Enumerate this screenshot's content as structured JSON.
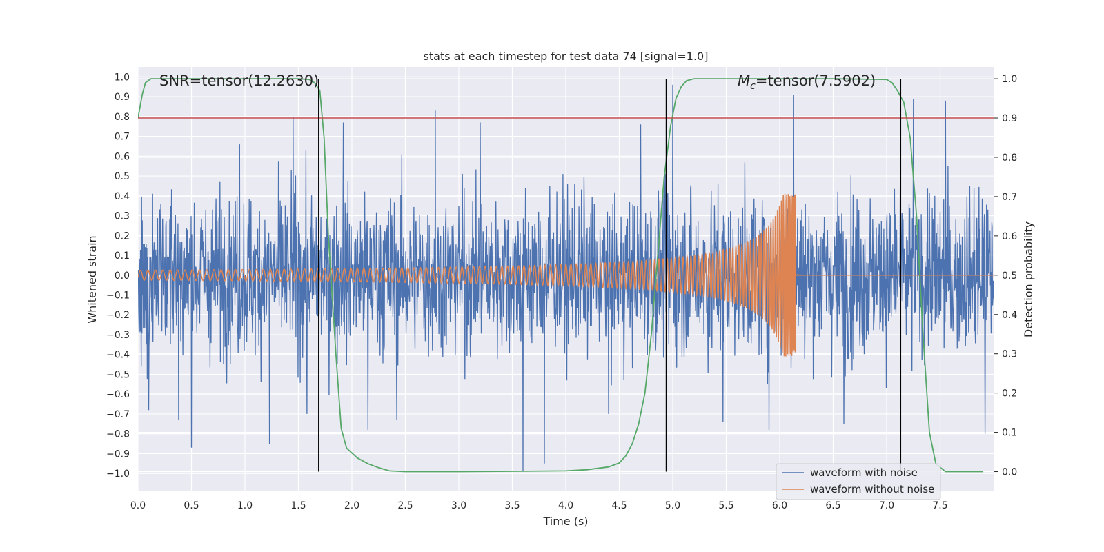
{
  "chart_data": {
    "type": "line",
    "title": "stats at each timestep for test data 74 [signal=1.0]",
    "xlabel": "Time (s)",
    "ylabel_left": "Whitened strain",
    "ylabel_right": "Detection probability",
    "xlim": [
      0.0,
      8.0
    ],
    "ylim_left": [
      -1.09,
      1.05
    ],
    "ylim_right": [
      -0.05,
      1.03
    ],
    "x_ticks": [
      "0.0",
      "0.5",
      "1.0",
      "1.5",
      "2.0",
      "2.5",
      "3.0",
      "3.5",
      "4.0",
      "4.5",
      "5.0",
      "5.5",
      "6.0",
      "6.5",
      "7.0",
      "7.5"
    ],
    "y_ticks_left": [
      "1.0",
      "0.9",
      "0.8",
      "0.7",
      "0.6",
      "0.5",
      "0.4",
      "0.3",
      "0.2",
      "0.1",
      "0.0",
      "-0.1",
      "-0.2",
      "-0.3",
      "-0.4",
      "-0.5",
      "-0.6",
      "-0.7",
      "-0.8",
      "-0.9",
      "-1.0"
    ],
    "y_ticks_right": [
      "1.0",
      "0.9",
      "0.8",
      "0.7",
      "0.6",
      "0.5",
      "0.4",
      "0.3",
      "0.2",
      "0.1",
      "0.0"
    ],
    "annotations": {
      "snr": "SNR=tensor(12.2630)",
      "mc_symbol": "M",
      "mc_sub": "c",
      "mc_value": "=tensor(7.5902)"
    },
    "threshold": {
      "axis": "right",
      "value": 0.9,
      "color": "#c44e52"
    },
    "vertical_lines": [
      1.69,
      4.94,
      7.13
    ],
    "series": [
      {
        "name": "waveform with noise",
        "axis": "left",
        "color": "#4c72b0",
        "kind": "noise",
        "sigma": 0.2,
        "envelope": 0.5,
        "spikes": [
          {
            "t": 0.95,
            "v": 0.66
          },
          {
            "t": 1.45,
            "v": 0.8
          },
          {
            "t": 1.92,
            "v": 0.77
          },
          {
            "t": 2.78,
            "v": 0.83
          },
          {
            "t": 3.2,
            "v": 0.77
          },
          {
            "t": 4.7,
            "v": 0.76
          },
          {
            "t": 5.0,
            "v": 0.96
          },
          {
            "t": 6.13,
            "v": 0.91
          },
          {
            "t": 7.25,
            "v": 0.89
          },
          {
            "t": 7.55,
            "v": 0.88
          },
          {
            "t": 0.5,
            "v": -0.87
          },
          {
            "t": 1.23,
            "v": -0.85
          },
          {
            "t": 2.15,
            "v": -0.78
          },
          {
            "t": 3.6,
            "v": -0.99
          },
          {
            "t": 3.8,
            "v": -0.95
          },
          {
            "t": 2.42,
            "v": -0.73
          },
          {
            "t": 5.9,
            "v": -0.78
          },
          {
            "t": 7.92,
            "v": -0.8
          },
          {
            "t": 0.38,
            "v": -0.73
          },
          {
            "t": 1.58,
            "v": -0.7
          },
          {
            "t": 6.6,
            "v": -0.75
          },
          {
            "t": 4.4,
            "v": -0.7
          },
          {
            "t": 5.47,
            "v": -0.74
          },
          {
            "t": 0.1,
            "v": -0.68
          }
        ]
      },
      {
        "name": "waveform without noise",
        "axis": "left",
        "color": "#dd8452",
        "kind": "chirp",
        "coalescence": 6.15,
        "peak": 0.41,
        "start_amplitude": 0.025
      },
      {
        "name": "detection probability",
        "axis": "right",
        "color": "#55a868",
        "kind": "probability",
        "x": [
          0.0,
          0.04,
          0.07,
          0.12,
          0.2,
          0.5,
          1.0,
          1.5,
          1.6,
          1.65,
          1.7,
          1.74,
          1.78,
          1.85,
          1.9,
          1.95,
          2.05,
          2.15,
          2.25,
          2.35,
          2.5,
          3.0,
          3.5,
          4.0,
          4.2,
          4.4,
          4.5,
          4.56,
          4.62,
          4.68,
          4.74,
          4.8,
          4.86,
          4.92,
          4.98,
          5.03,
          5.08,
          5.13,
          5.2,
          5.5,
          6.0,
          6.5,
          7.0,
          7.05,
          7.1,
          7.16,
          7.22,
          7.28,
          7.34,
          7.4,
          7.46,
          7.55,
          7.9
        ],
        "y": [
          0.9,
          0.96,
          0.99,
          1.0,
          1.0,
          1.0,
          1.0,
          1.0,
          0.998,
          0.99,
          0.97,
          0.85,
          0.6,
          0.3,
          0.11,
          0.06,
          0.035,
          0.02,
          0.01,
          0.002,
          0.0,
          0.0,
          0.001,
          0.002,
          0.005,
          0.012,
          0.022,
          0.04,
          0.07,
          0.12,
          0.2,
          0.35,
          0.55,
          0.75,
          0.88,
          0.95,
          0.98,
          0.995,
          1.0,
          1.0,
          1.0,
          1.0,
          0.998,
          0.99,
          0.97,
          0.94,
          0.85,
          0.65,
          0.35,
          0.1,
          0.02,
          0.0,
          0.0
        ]
      }
    ],
    "legend_location": "lower-right"
  }
}
